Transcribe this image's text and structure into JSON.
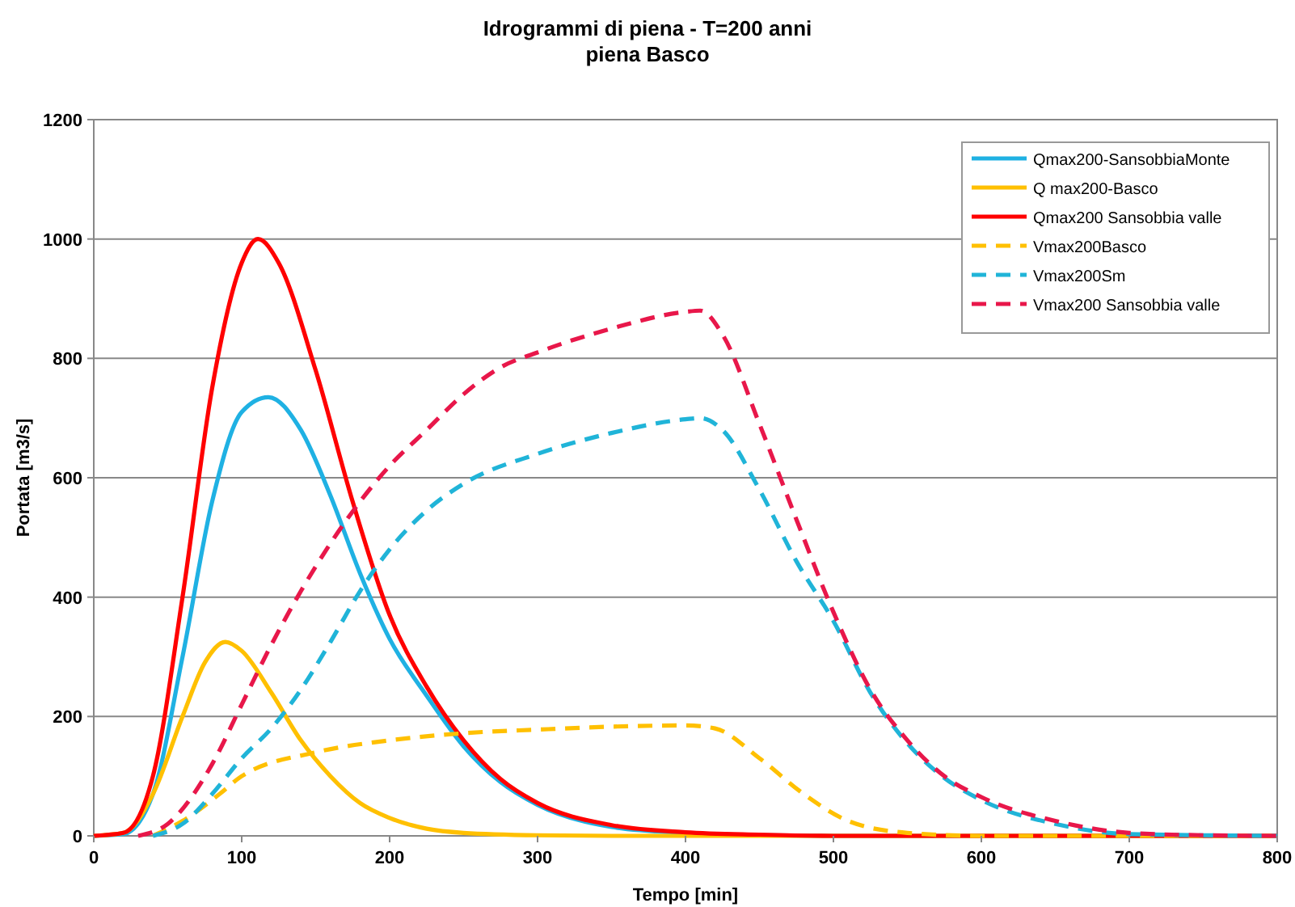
{
  "chart_data": {
    "type": "line",
    "title": "Idrogrammi di piena  - T=200 anni",
    "subtitle": "piena Basco",
    "xlabel": "Tempo [min]",
    "ylabel": "Portata [m3/s]",
    "xlim": [
      0,
      800
    ],
    "xticks": [
      0,
      100,
      200,
      300,
      400,
      500,
      600,
      700,
      800
    ],
    "ylim": [
      0,
      1200
    ],
    "yticks": [
      0,
      200,
      400,
      600,
      800,
      1000,
      1200
    ],
    "grid": "y",
    "legend": "top right",
    "series": [
      {
        "name": "Qmax200-SansobbiaMonte",
        "color": "#1fb1e3",
        "line_style": "solid",
        "x": [
          0,
          20,
          40,
          60,
          80,
          100,
          118,
          140,
          160,
          180,
          200,
          225,
          250,
          275,
          300,
          350,
          400,
          450,
          500,
          800
        ],
        "values": [
          0,
          3,
          70,
          300,
          560,
          710,
          735,
          680,
          570,
          440,
          330,
          235,
          150,
          90,
          52,
          15,
          5,
          1,
          0,
          0
        ]
      },
      {
        "name": "Q max200-Basco",
        "color": "#ffc000",
        "line_style": "solid",
        "x": [
          0,
          20,
          40,
          60,
          75,
          89,
          100,
          120,
          140,
          160,
          180,
          200,
          225,
          250,
          300,
          350,
          800
        ],
        "values": [
          0,
          5,
          70,
          200,
          290,
          325,
          310,
          240,
          160,
          100,
          55,
          30,
          12,
          5,
          1,
          0,
          0
        ]
      },
      {
        "name": "Qmax200 Sansobbia valle",
        "color": "#ff0000",
        "line_style": "solid",
        "x": [
          0,
          20,
          40,
          60,
          80,
          100,
          111,
          125,
          150,
          175,
          200,
          225,
          250,
          275,
          300,
          350,
          400,
          450,
          500,
          800
        ],
        "values": [
          0,
          5,
          100,
          400,
          750,
          960,
          1000,
          960,
          780,
          560,
          370,
          250,
          160,
          95,
          55,
          18,
          6,
          2,
          0,
          0
        ]
      },
      {
        "name": "Vmax200Basco",
        "color": "#ffc000",
        "line_style": "dashed",
        "x": [
          40,
          60,
          85,
          100,
          150,
          200,
          250,
          300,
          350,
          400,
          420,
          450,
          480,
          510,
          550,
          600,
          800
        ],
        "values": [
          0,
          25,
          70,
          100,
          140,
          160,
          172,
          178,
          183,
          185,
          180,
          130,
          70,
          25,
          5,
          0,
          0
        ]
      },
      {
        "name": "Vmax200Sm",
        "color": "#20b4d8",
        "line_style": "dashed",
        "x": [
          40,
          60,
          80,
          100,
          120,
          140,
          160,
          180,
          200,
          225,
          250,
          300,
          350,
          400,
          410,
          425,
          450,
          475,
          500,
          525,
          550,
          575,
          600,
          650,
          700,
          800
        ],
        "values": [
          0,
          20,
          70,
          130,
          180,
          245,
          325,
          410,
          480,
          545,
          590,
          640,
          675,
          698,
          700,
          680,
          580,
          460,
          360,
          240,
          155,
          97,
          60,
          20,
          3,
          0
        ]
      },
      {
        "name": "Vmax200 Sansobbia valle",
        "color": "#e8174a",
        "line_style": "dashed",
        "x": [
          30,
          50,
          80,
          100,
          120,
          140,
          160,
          180,
          200,
          225,
          250,
          275,
          300,
          350,
          400,
          410,
          425,
          450,
          475,
          500,
          525,
          550,
          575,
          600,
          650,
          700,
          750,
          800
        ],
        "values": [
          0,
          20,
          120,
          220,
          320,
          410,
          490,
          560,
          620,
          680,
          740,
          785,
          810,
          850,
          878,
          880,
          840,
          690,
          530,
          375,
          245,
          160,
          100,
          65,
          25,
          5,
          1,
          0
        ]
      }
    ]
  }
}
